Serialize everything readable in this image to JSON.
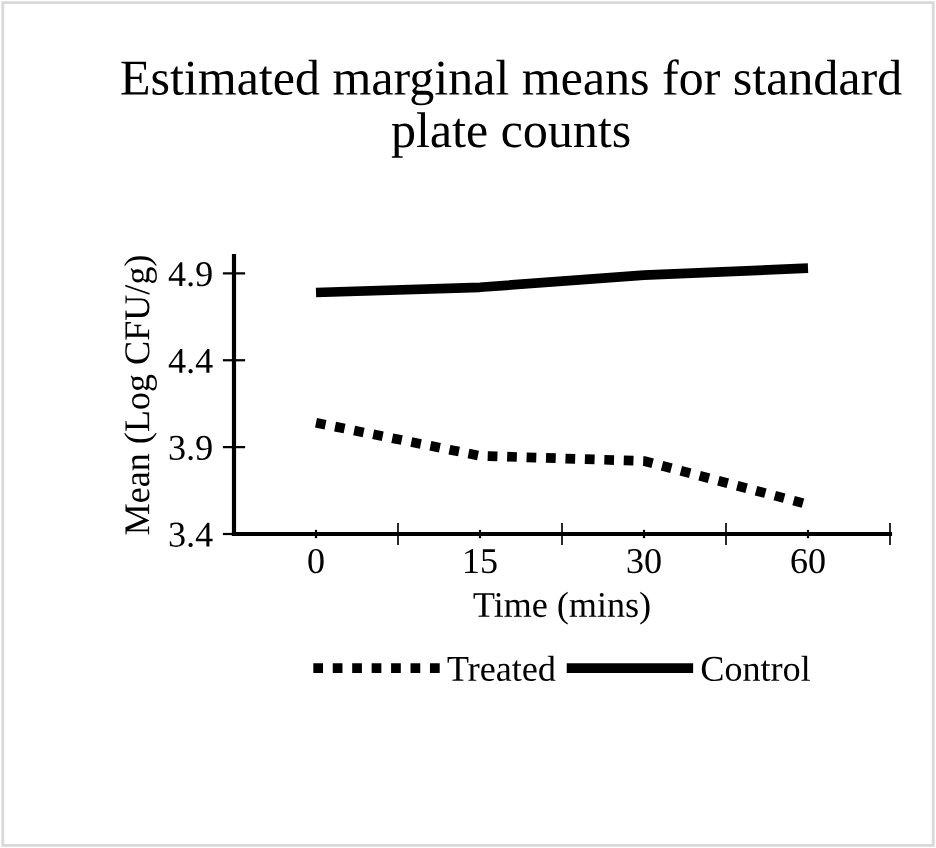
{
  "chart_data": {
    "type": "line",
    "title": "Estimated marginal means for standard plate counts",
    "xlabel": "Time (mins)",
    "ylabel": "Mean (Log CFU/g)",
    "categories": [
      "0",
      "15",
      "30",
      "60"
    ],
    "series": [
      {
        "name": "Treated",
        "color": "#000000",
        "line_style": "dotted",
        "values": [
          4.04,
          3.85,
          3.82,
          3.57
        ]
      },
      {
        "name": "Control",
        "color": "#000000",
        "line_style": "solid",
        "values": [
          4.79,
          4.82,
          4.89,
          4.93
        ]
      }
    ],
    "ylim": [
      3.4,
      5.0
    ],
    "yticks": [
      3.4,
      3.9,
      4.4,
      4.9
    ],
    "grid": false,
    "legend": "bottom",
    "marker": "none"
  }
}
